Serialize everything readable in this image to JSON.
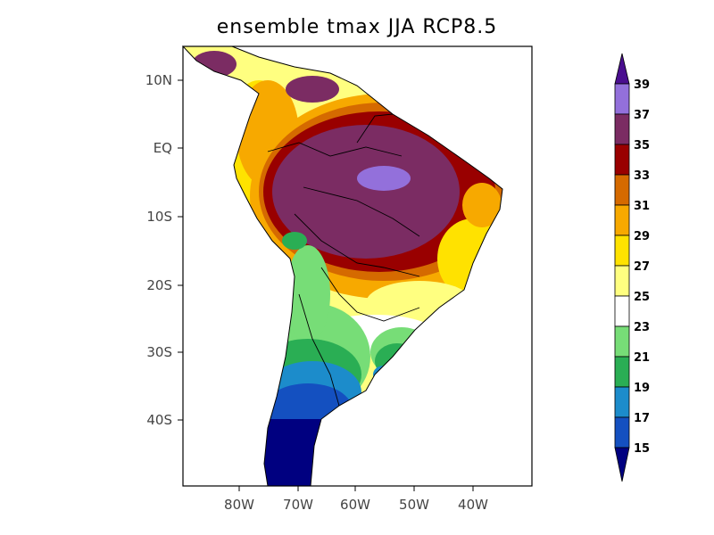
{
  "title": "ensemble tmax JJA RCP8.5",
  "map": {
    "lat_ticks": [
      "10N",
      "EQ",
      "10S",
      "20S",
      "30S",
      "40S"
    ],
    "lon_ticks": [
      "80W",
      "70W",
      "60W",
      "50W",
      "40W"
    ]
  },
  "colorbar": {
    "labels": [
      "39",
      "37",
      "35",
      "33",
      "31",
      "29",
      "27",
      "25",
      "23",
      "21",
      "19",
      "17",
      "15"
    ],
    "colors": [
      "#4a0e8f",
      "#9370db",
      "#7b2c63",
      "#990000",
      "#d56a00",
      "#f7a900",
      "#ffe200",
      "#ffff80",
      "#ffffff",
      "#77dd77",
      "#2aae54",
      "#1c8ccb",
      "#1450c0",
      "#000080"
    ]
  }
}
